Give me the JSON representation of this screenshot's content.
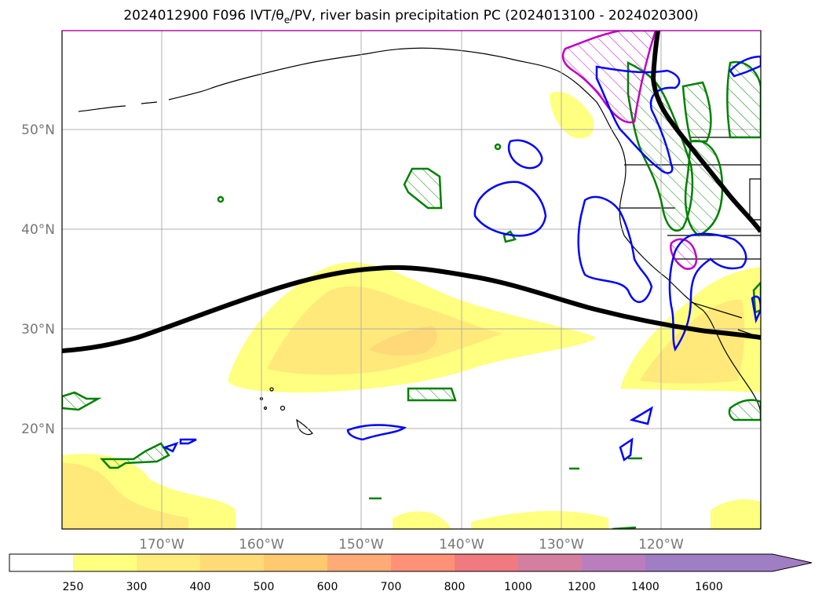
{
  "title": {
    "prefix": "2024012900 F096 IVT/",
    "theta_symbol": "θ",
    "theta_sub": "e",
    "suffix": "/PV, river basin precipitation PC (2024013100 - 2024020300)"
  },
  "map": {
    "lat_labels": [
      "50°N",
      "40°N",
      "30°N",
      "20°N"
    ],
    "lon_labels": [
      "170°W",
      "160°W",
      "150°W",
      "140°W",
      "130°W",
      "120°W"
    ],
    "gridlines": true,
    "colors": {
      "ivt_250": "#ffff80",
      "ivt_300": "#ffe97a",
      "ivt_400": "#ffd978",
      "pv_contour": "#0000ff",
      "theta_contour": "#008000",
      "magenta_contour": "#c000c0",
      "jet_line": "#000000",
      "coast": "#000000"
    }
  },
  "colorbar": {
    "labels": [
      "250",
      "300",
      "400",
      "500",
      "600",
      "700",
      "800",
      "1000",
      "1200",
      "1400",
      "1600"
    ],
    "colors": [
      "#ffffff",
      "#ffff80",
      "#ffec7c",
      "#ffdb78",
      "#ffc970",
      "#ffab78",
      "#ff9276",
      "#f07a80",
      "#d47ea0",
      "#bb7ebd",
      "#a07ec4"
    ]
  }
}
